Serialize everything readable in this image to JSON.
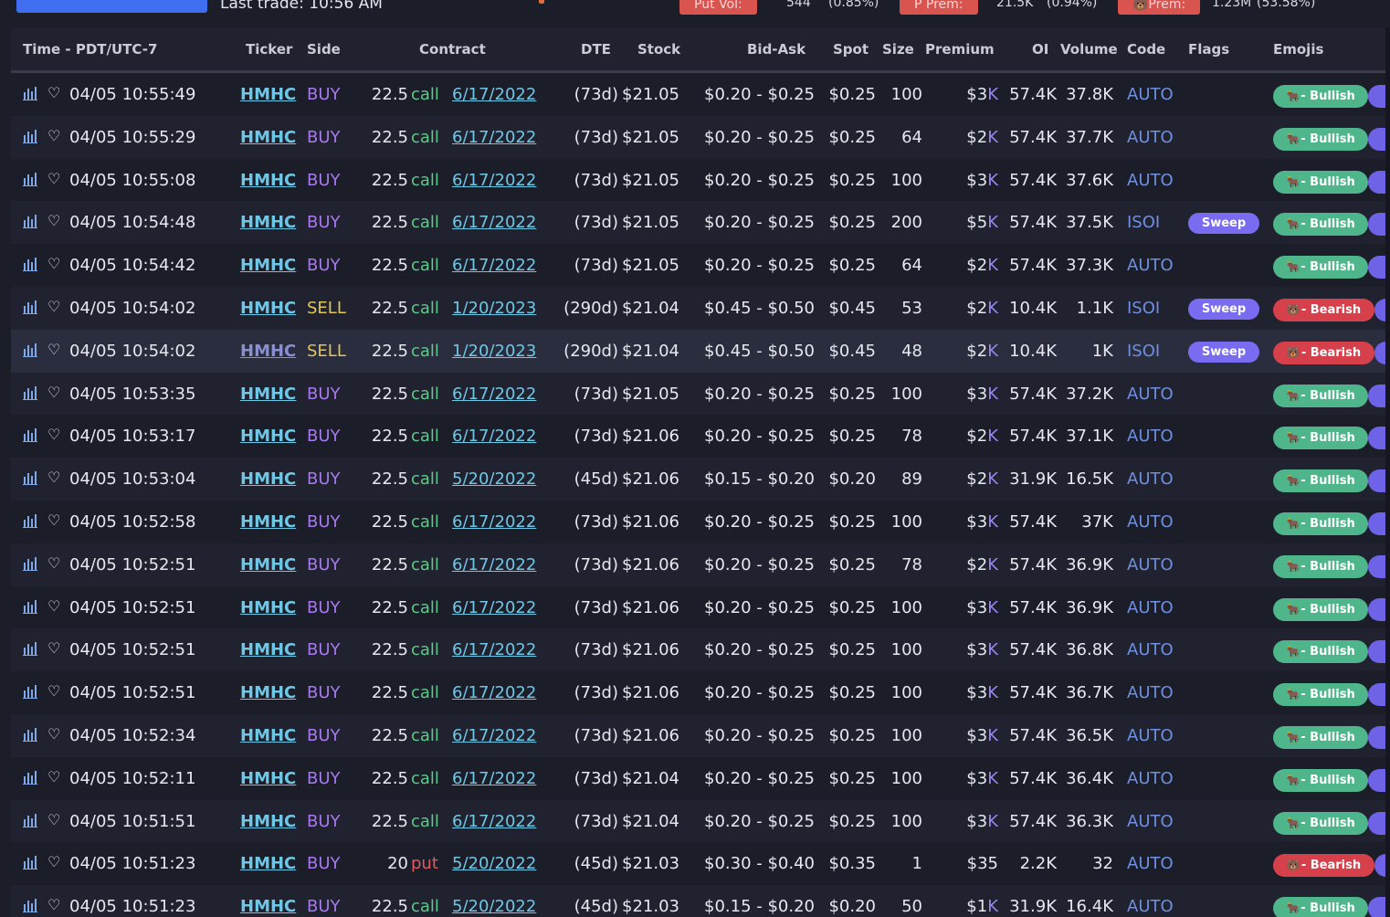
{
  "topbar": {
    "last_trade": "Last trade: 10:56 AM",
    "stats": [
      {
        "label": "Put Vol:",
        "value": "544",
        "pct": "(0.85%)"
      },
      {
        "label": "P Prem:",
        "value": "21.5K",
        "pct": "(0.94%)"
      },
      {
        "label": "🐻Prem:",
        "value": "1.23M",
        "pct": "(53.58%)"
      }
    ]
  },
  "table": {
    "headers": {
      "time": "Time - PDT/UTC-7",
      "ticker": "Ticker",
      "side": "Side",
      "contract": "Contract",
      "dte": "DTE",
      "stock": "Stock",
      "bidask": "Bid-Ask",
      "spot": "Spot",
      "size": "Size",
      "premium": "Premium",
      "oi": "OI",
      "volume": "Volume",
      "code": "Code",
      "flags": "Flags",
      "emojis": "Emojis"
    },
    "rows": [
      {
        "time": "04/05 10:55:49",
        "ticker": "HMHC",
        "side": "BUY",
        "strike": "22.5",
        "type": "call",
        "expiry": "6/17/2022",
        "dte": "(73d)",
        "stock": "$21.05",
        "bidask": "$0.20 - $0.25",
        "spot": "$0.25",
        "size": "100",
        "prem": "$3",
        "prem_k": "K",
        "oi": "57.4K",
        "volume": "37.8K",
        "code": "AUTO",
        "flag": "",
        "sentiment": "Bullish"
      },
      {
        "time": "04/05 10:55:29",
        "ticker": "HMHC",
        "side": "BUY",
        "strike": "22.5",
        "type": "call",
        "expiry": "6/17/2022",
        "dte": "(73d)",
        "stock": "$21.05",
        "bidask": "$0.20 - $0.25",
        "spot": "$0.25",
        "size": "64",
        "prem": "$2",
        "prem_k": "K",
        "oi": "57.4K",
        "volume": "37.7K",
        "code": "AUTO",
        "flag": "",
        "sentiment": "Bullish"
      },
      {
        "time": "04/05 10:55:08",
        "ticker": "HMHC",
        "side": "BUY",
        "strike": "22.5",
        "type": "call",
        "expiry": "6/17/2022",
        "dte": "(73d)",
        "stock": "$21.05",
        "bidask": "$0.20 - $0.25",
        "spot": "$0.25",
        "size": "100",
        "prem": "$3",
        "prem_k": "K",
        "oi": "57.4K",
        "volume": "37.6K",
        "code": "AUTO",
        "flag": "",
        "sentiment": "Bullish"
      },
      {
        "time": "04/05 10:54:48",
        "ticker": "HMHC",
        "side": "BUY",
        "strike": "22.5",
        "type": "call",
        "expiry": "6/17/2022",
        "dte": "(73d)",
        "stock": "$21.05",
        "bidask": "$0.20 - $0.25",
        "spot": "$0.25",
        "size": "200",
        "prem": "$5",
        "prem_k": "K",
        "oi": "57.4K",
        "volume": "37.5K",
        "code": "ISOI",
        "flag": "Sweep",
        "sentiment": "Bullish"
      },
      {
        "time": "04/05 10:54:42",
        "ticker": "HMHC",
        "side": "BUY",
        "strike": "22.5",
        "type": "call",
        "expiry": "6/17/2022",
        "dte": "(73d)",
        "stock": "$21.05",
        "bidask": "$0.20 - $0.25",
        "spot": "$0.25",
        "size": "64",
        "prem": "$2",
        "prem_k": "K",
        "oi": "57.4K",
        "volume": "37.3K",
        "code": "AUTO",
        "flag": "",
        "sentiment": "Bullish"
      },
      {
        "time": "04/05 10:54:02",
        "ticker": "HMHC",
        "side": "SELL",
        "strike": "22.5",
        "type": "call",
        "expiry": "1/20/2023",
        "dte": "(290d)",
        "stock": "$21.04",
        "bidask": "$0.45 - $0.50",
        "spot": "$0.45",
        "size": "53",
        "prem": "$2",
        "prem_k": "K",
        "oi": "10.4K",
        "volume": "1.1K",
        "code": "ISOI",
        "flag": "Sweep",
        "sentiment": "Bearish"
      },
      {
        "time": "04/05 10:54:02",
        "ticker": "HMHC",
        "side": "SELL",
        "strike": "22.5",
        "type": "call",
        "expiry": "1/20/2023",
        "dte": "(290d)",
        "stock": "$21.04",
        "bidask": "$0.45 - $0.50",
        "spot": "$0.45",
        "size": "48",
        "prem": "$2",
        "prem_k": "K",
        "oi": "10.4K",
        "volume": "1K",
        "code": "ISOI",
        "flag": "Sweep",
        "sentiment": "Bearish"
      },
      {
        "time": "04/05 10:53:35",
        "ticker": "HMHC",
        "side": "BUY",
        "strike": "22.5",
        "type": "call",
        "expiry": "6/17/2022",
        "dte": "(73d)",
        "stock": "$21.05",
        "bidask": "$0.20 - $0.25",
        "spot": "$0.25",
        "size": "100",
        "prem": "$3",
        "prem_k": "K",
        "oi": "57.4K",
        "volume": "37.2K",
        "code": "AUTO",
        "flag": "",
        "sentiment": "Bullish"
      },
      {
        "time": "04/05 10:53:17",
        "ticker": "HMHC",
        "side": "BUY",
        "strike": "22.5",
        "type": "call",
        "expiry": "6/17/2022",
        "dte": "(73d)",
        "stock": "$21.06",
        "bidask": "$0.20 - $0.25",
        "spot": "$0.25",
        "size": "78",
        "prem": "$2",
        "prem_k": "K",
        "oi": "57.4K",
        "volume": "37.1K",
        "code": "AUTO",
        "flag": "",
        "sentiment": "Bullish"
      },
      {
        "time": "04/05 10:53:04",
        "ticker": "HMHC",
        "side": "BUY",
        "strike": "22.5",
        "type": "call",
        "expiry": "5/20/2022",
        "dte": "(45d)",
        "stock": "$21.06",
        "bidask": "$0.15 - $0.20",
        "spot": "$0.20",
        "size": "89",
        "prem": "$2",
        "prem_k": "K",
        "oi": "31.9K",
        "volume": "16.5K",
        "code": "AUTO",
        "flag": "",
        "sentiment": "Bullish"
      },
      {
        "time": "04/05 10:52:58",
        "ticker": "HMHC",
        "side": "BUY",
        "strike": "22.5",
        "type": "call",
        "expiry": "6/17/2022",
        "dte": "(73d)",
        "stock": "$21.06",
        "bidask": "$0.20 - $0.25",
        "spot": "$0.25",
        "size": "100",
        "prem": "$3",
        "prem_k": "K",
        "oi": "57.4K",
        "volume": "37K",
        "code": "AUTO",
        "flag": "",
        "sentiment": "Bullish"
      },
      {
        "time": "04/05 10:52:51",
        "ticker": "HMHC",
        "side": "BUY",
        "strike": "22.5",
        "type": "call",
        "expiry": "6/17/2022",
        "dte": "(73d)",
        "stock": "$21.06",
        "bidask": "$0.20 - $0.25",
        "spot": "$0.25",
        "size": "78",
        "prem": "$2",
        "prem_k": "K",
        "oi": "57.4K",
        "volume": "36.9K",
        "code": "AUTO",
        "flag": "",
        "sentiment": "Bullish"
      },
      {
        "time": "04/05 10:52:51",
        "ticker": "HMHC",
        "side": "BUY",
        "strike": "22.5",
        "type": "call",
        "expiry": "6/17/2022",
        "dte": "(73d)",
        "stock": "$21.06",
        "bidask": "$0.20 - $0.25",
        "spot": "$0.25",
        "size": "100",
        "prem": "$3",
        "prem_k": "K",
        "oi": "57.4K",
        "volume": "36.9K",
        "code": "AUTO",
        "flag": "",
        "sentiment": "Bullish"
      },
      {
        "time": "04/05 10:52:51",
        "ticker": "HMHC",
        "side": "BUY",
        "strike": "22.5",
        "type": "call",
        "expiry": "6/17/2022",
        "dte": "(73d)",
        "stock": "$21.06",
        "bidask": "$0.20 - $0.25",
        "spot": "$0.25",
        "size": "100",
        "prem": "$3",
        "prem_k": "K",
        "oi": "57.4K",
        "volume": "36.8K",
        "code": "AUTO",
        "flag": "",
        "sentiment": "Bullish"
      },
      {
        "time": "04/05 10:52:51",
        "ticker": "HMHC",
        "side": "BUY",
        "strike": "22.5",
        "type": "call",
        "expiry": "6/17/2022",
        "dte": "(73d)",
        "stock": "$21.06",
        "bidask": "$0.20 - $0.25",
        "spot": "$0.25",
        "size": "100",
        "prem": "$3",
        "prem_k": "K",
        "oi": "57.4K",
        "volume": "36.7K",
        "code": "AUTO",
        "flag": "",
        "sentiment": "Bullish"
      },
      {
        "time": "04/05 10:52:34",
        "ticker": "HMHC",
        "side": "BUY",
        "strike": "22.5",
        "type": "call",
        "expiry": "6/17/2022",
        "dte": "(73d)",
        "stock": "$21.06",
        "bidask": "$0.20 - $0.25",
        "spot": "$0.25",
        "size": "100",
        "prem": "$3",
        "prem_k": "K",
        "oi": "57.4K",
        "volume": "36.5K",
        "code": "AUTO",
        "flag": "",
        "sentiment": "Bullish"
      },
      {
        "time": "04/05 10:52:11",
        "ticker": "HMHC",
        "side": "BUY",
        "strike": "22.5",
        "type": "call",
        "expiry": "6/17/2022",
        "dte": "(73d)",
        "stock": "$21.04",
        "bidask": "$0.20 - $0.25",
        "spot": "$0.25",
        "size": "100",
        "prem": "$3",
        "prem_k": "K",
        "oi": "57.4K",
        "volume": "36.4K",
        "code": "AUTO",
        "flag": "",
        "sentiment": "Bullish"
      },
      {
        "time": "04/05 10:51:51",
        "ticker": "HMHC",
        "side": "BUY",
        "strike": "22.5",
        "type": "call",
        "expiry": "6/17/2022",
        "dte": "(73d)",
        "stock": "$21.04",
        "bidask": "$0.20 - $0.25",
        "spot": "$0.25",
        "size": "100",
        "prem": "$3",
        "prem_k": "K",
        "oi": "57.4K",
        "volume": "36.3K",
        "code": "AUTO",
        "flag": "",
        "sentiment": "Bullish"
      },
      {
        "time": "04/05 10:51:23",
        "ticker": "HMHC",
        "side": "BUY",
        "strike": "20",
        "type": "put",
        "expiry": "5/20/2022",
        "dte": "(45d)",
        "stock": "$21.03",
        "bidask": "$0.30 - $0.40",
        "spot": "$0.35",
        "size": "1",
        "prem": "$35",
        "prem_k": "",
        "oi": "2.2K",
        "volume": "32",
        "code": "AUTO",
        "flag": "",
        "sentiment": "Bearish"
      },
      {
        "time": "04/05 10:51:23",
        "ticker": "HMHC",
        "side": "BUY",
        "strike": "22.5",
        "type": "call",
        "expiry": "5/20/2022",
        "dte": "(45d)",
        "stock": "$21.03",
        "bidask": "$0.15 - $0.20",
        "spot": "$0.20",
        "size": "50",
        "prem": "$1",
        "prem_k": "K",
        "oi": "31.9K",
        "volume": "16.4K",
        "code": "AUTO",
        "flag": "",
        "sentiment": "Bullish"
      }
    ]
  },
  "emoji_glyphs": {
    "Bullish": "🐂",
    "Bearish": "🐻"
  },
  "colors": {
    "buy": "#a878f0",
    "sell": "#e3c65a",
    "call": "#5fc98a",
    "put": "#e05b63",
    "bullish": "#4fb58a",
    "bearish": "#d6404a",
    "sweep": "#7a6cf0",
    "link": "#6fc7e6"
  }
}
